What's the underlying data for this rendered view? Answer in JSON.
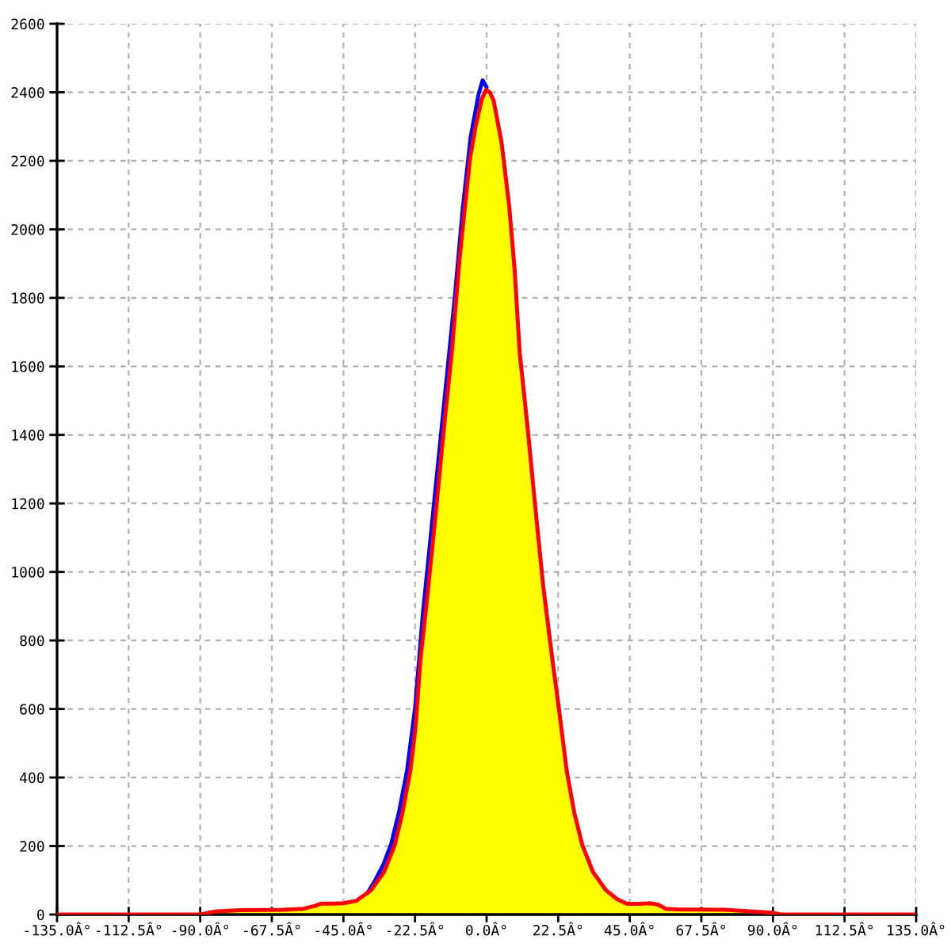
{
  "chart_data": {
    "type": "area",
    "x": [
      -90,
      -87.5,
      -85,
      -80,
      -75,
      -70,
      -65,
      -60,
      -57.5,
      -55,
      -52.5,
      -50,
      -47.5,
      -45,
      -42.5,
      -40,
      -37.5,
      -35,
      -32.5,
      -30,
      -27.5,
      -25,
      -22.5,
      -20,
      -17.5,
      -15,
      -12.5,
      -10,
      -7.5,
      -5,
      -2.5,
      -1.25,
      0,
      1.25,
      2.5,
      5,
      7.5,
      10,
      12.5,
      15,
      17.5,
      20,
      22.5,
      25,
      27.5,
      30,
      32.5,
      35,
      37.5,
      40,
      42.5,
      45,
      47.5,
      50,
      52.5,
      55,
      57.5,
      60,
      65,
      70,
      75,
      80,
      85,
      87.5,
      90,
      92.5
    ],
    "xlim": [
      -135,
      135
    ],
    "xticks": [
      {
        "value": -135,
        "label": "-135.0Â°"
      },
      {
        "value": -112.5,
        "label": "-112.5Â°"
      },
      {
        "value": -90,
        "label": "-90.0Â°"
      },
      {
        "value": -67.5,
        "label": "-67.5Â°"
      },
      {
        "value": -45,
        "label": "-45.0Â°"
      },
      {
        "value": -22.5,
        "label": "-22.5Â°"
      },
      {
        "value": 0,
        "label": "0.0Â°"
      },
      {
        "value": 22.5,
        "label": "22.5Â°"
      },
      {
        "value": 45,
        "label": "45.0Â°"
      },
      {
        "value": 67.5,
        "label": "67.5Â°"
      },
      {
        "value": 90,
        "label": "90.0Â°"
      },
      {
        "value": 112.5,
        "label": "112.5Â°"
      },
      {
        "value": 135,
        "label": "135.0Â°"
      }
    ],
    "ylim": [
      0,
      2600
    ],
    "yticks": [
      0,
      200,
      400,
      600,
      800,
      1000,
      1200,
      1400,
      1600,
      1800,
      2000,
      2200,
      2400,
      2600
    ],
    "grid": true,
    "series": [
      {
        "color": "#ffff00",
        "values": [
          0,
          5,
          9,
          10,
          12,
          14,
          14,
          15,
          17,
          22,
          30,
          32,
          33,
          33,
          35,
          42,
          58,
          85,
          120,
          170,
          250,
          360,
          535,
          810,
          1030,
          1265,
          1505,
          1740,
          2000,
          2220,
          2340,
          2390,
          2405,
          2395,
          2365,
          2240,
          2040,
          1700,
          1455,
          1215,
          985,
          795,
          615,
          430,
          300,
          205,
          140,
          100,
          71,
          50,
          38,
          32,
          31,
          33,
          30,
          22,
          17,
          15,
          14,
          14,
          14,
          11,
          8,
          6,
          4,
          0
        ]
      },
      {
        "type": "line",
        "color": "#0000ff",
        "values": [
          null,
          null,
          null,
          null,
          null,
          null,
          null,
          null,
          null,
          null,
          null,
          null,
          null,
          null,
          null,
          null,
          62,
          100,
          145,
          205,
          300,
          420,
          600,
          880,
          1110,
          1340,
          1570,
          1800,
          2060,
          2270,
          2395,
          2435,
          2415,
          null,
          null,
          null,
          null,
          null,
          null,
          null,
          null,
          null,
          null,
          null,
          null,
          null,
          null,
          null,
          null,
          null,
          null,
          null,
          null,
          null,
          null,
          null,
          null,
          null,
          null,
          null,
          null,
          null,
          null,
          null,
          null,
          null
        ]
      },
      {
        "type": "line",
        "color": "#ff0000",
        "x": [
          -135,
          -90,
          -87.5,
          -85,
          -77.5,
          -64,
          -57.6,
          -54,
          -52,
          -48,
          -45,
          -41,
          -36.3,
          -32.2,
          -28.9,
          -26.5,
          -24,
          -22.4,
          -20.8,
          -18.3,
          -15.8,
          -13.4,
          -10.9,
          -8.5,
          -6.8,
          -5.2,
          -3.5,
          -1.5,
          -0.2,
          1,
          2.2,
          4.7,
          7.1,
          8.8,
          10.4,
          12.9,
          15.3,
          17.8,
          20.7,
          22.7,
          25.2,
          27.6,
          30.1,
          33.4,
          37.5,
          41,
          44,
          47.5,
          51.4,
          53.9,
          56.3,
          60,
          75,
          83,
          90,
          92.5,
          135
        ],
        "values": [
          0,
          0,
          5,
          9,
          13,
          14,
          17,
          25,
          32,
          32,
          33,
          40,
          71,
          125,
          202,
          295,
          418,
          541,
          742,
          958,
          1189,
          1420,
          1645,
          1914,
          2068,
          2207,
          2299,
          2380,
          2407,
          2400,
          2376,
          2253,
          2068,
          1883,
          1640,
          1420,
          1189,
          958,
          742,
          603,
          418,
          295,
          202,
          125,
          71,
          45,
          32,
          31,
          33,
          29,
          17,
          15,
          14,
          9,
          5,
          0,
          0
        ]
      }
    ]
  }
}
